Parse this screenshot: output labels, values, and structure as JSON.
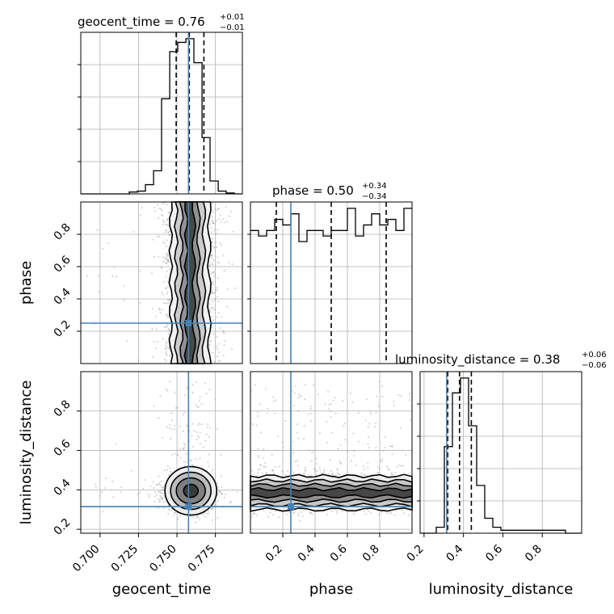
{
  "chart_data": {
    "type": "corner",
    "parameters": [
      "geocent_time",
      "phase",
      "luminosity_distance"
    ],
    "axis_labels": {
      "geocent_time": "geocent_time",
      "phase": "phase",
      "luminosity_distance": "luminosity_distance"
    },
    "titles": [
      {
        "param": "geocent_time",
        "label": "geocent_time = ",
        "median": "0.76",
        "plus": "+0.01",
        "minus": "−0.01"
      },
      {
        "param": "phase",
        "label": "phase = ",
        "median": "0.50",
        "plus": "+0.34",
        "minus": "−0.34"
      },
      {
        "param": "luminosity_distance",
        "label": "luminosity_distance = ",
        "median": "0.38",
        "plus": "+0.06",
        "minus": "−0.06"
      }
    ],
    "ranges": {
      "geocent_time": [
        0.6875,
        0.7925
      ],
      "phase": [
        0.0,
        1.0
      ],
      "luminosity_distance": [
        0.18,
        1.0
      ]
    },
    "ticks": {
      "geocent_time": [
        "0.700",
        "0.725",
        "0.750",
        "0.775"
      ],
      "phase": [
        "0.2",
        "0.4",
        "0.6",
        "0.8"
      ],
      "luminosity_distance": [
        "0.2",
        "0.4",
        "0.6",
        "0.8"
      ]
    },
    "truths": {
      "geocent_time": 0.7575,
      "phase": 0.25,
      "luminosity_distance": 0.315
    },
    "quantiles": {
      "geocent_time": [
        0.7495,
        0.758,
        0.7675
      ],
      "phase": [
        0.16,
        0.5,
        0.84
      ],
      "luminosity_distance": [
        0.32,
        0.38,
        0.44
      ]
    },
    "histograms": {
      "geocent_time": {
        "edges": [
          0.6875,
          0.6928,
          0.698,
          0.7033,
          0.7085,
          0.7138,
          0.719,
          0.7243,
          0.7295,
          0.7348,
          0.74,
          0.7453,
          0.7505,
          0.7558,
          0.761,
          0.7663,
          0.7715,
          0.7768,
          0.782,
          0.7873,
          0.7925
        ],
        "counts": [
          0,
          0,
          0,
          0,
          0,
          0,
          2,
          3,
          10,
          25,
          103,
          154,
          164,
          168,
          142,
          61,
          14,
          3,
          1,
          0
        ]
      },
      "phase": {
        "edges": [
          0.0,
          0.05,
          0.1,
          0.15,
          0.2,
          0.25,
          0.3,
          0.35,
          0.4,
          0.45,
          0.5,
          0.55,
          0.6,
          0.65,
          0.7,
          0.75,
          0.8,
          0.85,
          0.9,
          0.95,
          1.0
        ],
        "counts": [
          24,
          23,
          24,
          26,
          25,
          27,
          22,
          24,
          24,
          23,
          24,
          24,
          28,
          23,
          25,
          27,
          25,
          26,
          24,
          28
        ]
      },
      "luminosity_distance": {
        "edges": [
          0.18,
          0.221,
          0.262,
          0.303,
          0.344,
          0.385,
          0.426,
          0.467,
          0.508,
          0.549,
          0.59,
          0.631,
          0.672,
          0.713,
          0.754,
          0.795,
          0.836,
          0.877,
          0.918,
          0.959,
          1.0
        ],
        "counts": [
          0,
          0,
          2,
          29,
          47,
          52,
          36,
          16,
          5,
          2,
          1,
          1,
          1,
          1,
          1,
          1,
          1,
          1,
          0,
          0
        ]
      }
    }
  }
}
